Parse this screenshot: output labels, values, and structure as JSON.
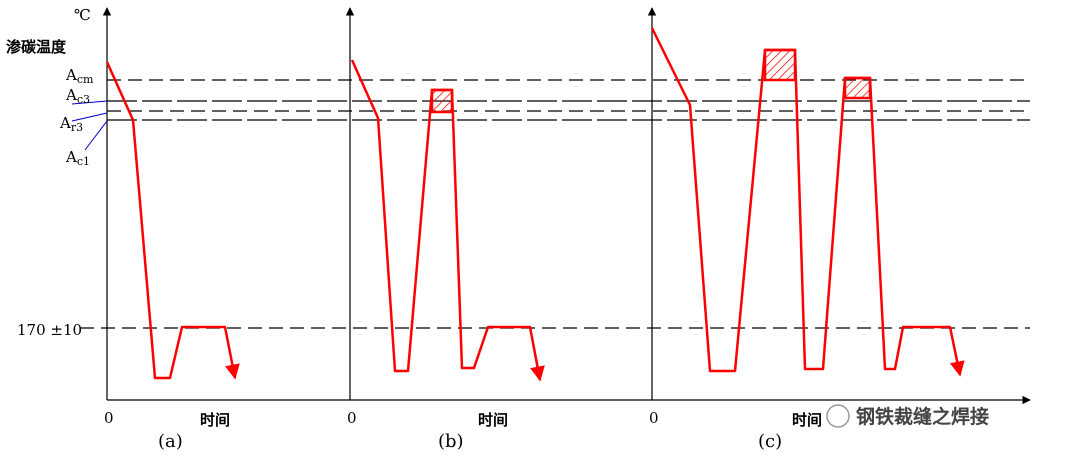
{
  "axis_labels": {
    "unit": "℃",
    "temperature": "渗碳温度",
    "ref_value": "170 ±10"
  },
  "levels": [
    {
      "main": "A",
      "sub": "cm"
    },
    {
      "main": "A",
      "sub": "c3"
    },
    {
      "main": "A",
      "sub": "r3"
    },
    {
      "main": "A",
      "sub": "c1"
    }
  ],
  "panels": [
    {
      "origin": "0",
      "time": "时间",
      "label": "(a)"
    },
    {
      "origin": "0",
      "time": "时间",
      "label": "(b)"
    },
    {
      "origin": "0",
      "time": "时间",
      "label": "(c)"
    }
  ],
  "watermark": "钢铁裁缝之焊接"
}
